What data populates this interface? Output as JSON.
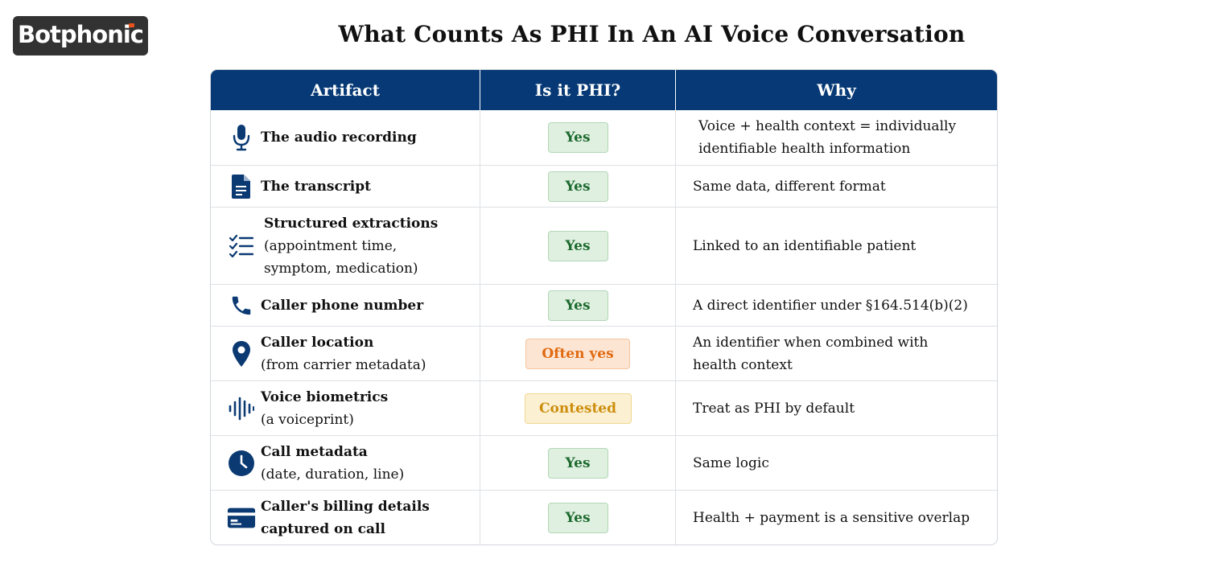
{
  "logo": {
    "text": "Botphonic"
  },
  "title": "What Counts As PHI In An AI Voice Conversation",
  "table": {
    "headers": [
      "Artifact",
      "Is it PHI?",
      "Why"
    ],
    "rows": [
      {
        "icon": "microphone-icon",
        "name": "The audio recording",
        "sub": "",
        "phi": "Yes",
        "status": "yes",
        "why": "Voice + health context = individually identifiable health information"
      },
      {
        "icon": "document-icon",
        "name": "The transcript",
        "sub": "",
        "phi": "Yes",
        "status": "yes",
        "why": "Same data, different format"
      },
      {
        "icon": "checklist-icon",
        "name": "Structured extractions",
        "sub": "(appointment time, symptom, medication)",
        "phi": "Yes",
        "status": "yes",
        "why": "Linked to an identifiable patient"
      },
      {
        "icon": "phone-icon",
        "name": "Caller phone number",
        "sub": "",
        "phi": "Yes",
        "status": "yes",
        "why": "A direct identifier under §164.514(b)(2)"
      },
      {
        "icon": "location-pin-icon",
        "name": "Caller location",
        "sub": "(from carrier metadata)",
        "phi": "Often yes",
        "status": "often",
        "why": "An identifier when combined with health context"
      },
      {
        "icon": "soundwave-icon",
        "name": "Voice biometrics",
        "sub": "(a voiceprint)",
        "phi": "Contested",
        "status": "contested",
        "why": "Treat as PHI by default"
      },
      {
        "icon": "clock-icon",
        "name": "Call metadata",
        "sub": "(date, duration, line)",
        "phi": "Yes",
        "status": "yes",
        "why": "Same logic"
      },
      {
        "icon": "credit-card-icon",
        "name": "Caller's billing details captured on call",
        "sub": "",
        "phi": "Yes",
        "status": "yes",
        "why": "Health + payment is a sensitive overlap"
      }
    ]
  },
  "colors": {
    "header_bg": "#063975",
    "icon": "#0b3a73",
    "yes_bg": "#dff0e0",
    "yes_text": "#1d6a2f",
    "often_bg": "#fde5d3",
    "often_text": "#e06a12",
    "contested_bg": "#fcf0d2",
    "contested_text": "#cc8d0c"
  }
}
